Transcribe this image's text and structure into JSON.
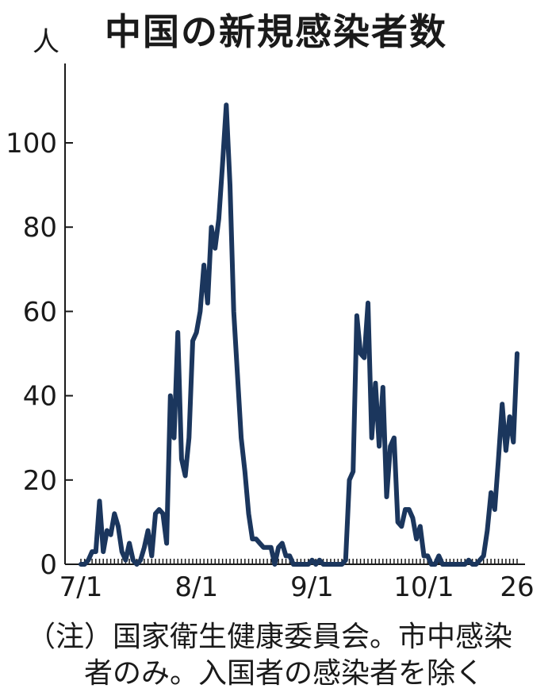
{
  "title": "中国の新規感染者数",
  "chart_data": {
    "type": "line",
    "title": "中国の新規感染者数",
    "ylabel": "人",
    "xlabel": "",
    "ylim": [
      0,
      115
    ],
    "yticks": [
      0,
      20,
      40,
      60,
      80,
      100
    ],
    "xticks": [
      {
        "label": "7/1",
        "day": 0
      },
      {
        "label": "8/1",
        "day": 31
      },
      {
        "label": "9/1",
        "day": 62
      },
      {
        "label": "10/1",
        "day": 92
      },
      {
        "label": "26",
        "day": 117
      }
    ],
    "grid": false,
    "legend": "none",
    "color": "#1b365d",
    "series": [
      {
        "x_start": "7/1",
        "values": [
          0,
          0,
          1,
          3,
          3,
          15,
          3,
          8,
          7,
          12,
          9,
          3,
          1,
          5,
          1,
          0,
          1,
          4,
          8,
          2,
          12,
          13,
          12,
          5,
          40,
          30,
          55,
          25,
          21,
          30,
          53,
          55,
          60,
          71,
          62,
          80,
          75,
          82,
          95,
          109,
          90,
          60,
          45,
          30,
          22,
          12,
          6,
          6,
          5,
          4,
          4,
          4,
          0,
          4,
          5,
          2,
          2,
          0,
          0,
          0,
          0,
          0,
          1,
          0,
          1,
          0,
          0,
          0,
          0,
          0,
          0,
          1,
          20,
          22,
          59,
          50,
          49,
          62,
          30,
          43,
          28,
          42,
          16,
          28,
          30,
          10,
          9,
          13,
          13,
          11,
          6,
          9,
          2,
          2,
          0,
          0,
          2,
          0,
          0,
          0,
          0,
          0,
          0,
          0,
          1,
          0,
          0,
          1,
          2,
          8,
          17,
          13,
          25,
          38,
          27,
          35,
          29,
          50
        ]
      }
    ]
  },
  "note": {
    "line1": "（注）国家衛生健康委員会。市中感染",
    "line2": "者のみ。入国者の感染者を除く"
  }
}
